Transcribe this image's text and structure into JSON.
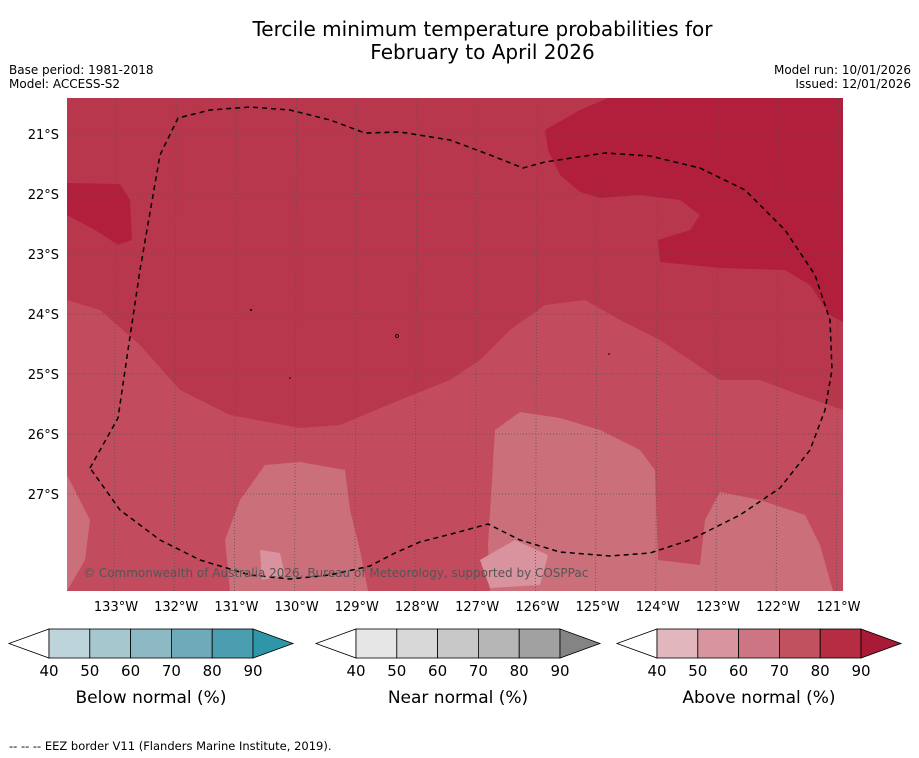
{
  "title_line1": "Tercile minimum temperature probabilities for",
  "title_line2": "February to April 2026",
  "base_period": "Base period: 1981-2018",
  "model": "Model: ACCESS-S2",
  "model_run": "Model run: 10/01/2026",
  "issued": "Issued: 12/01/2026",
  "copyright": "© Commonwealth of Australia 2026, Bureau of Meteorology, supported by COSPPac",
  "footer": "--  --  -- EEZ border V11 (Flanders Marine Institute, 2019).",
  "lat_labels": [
    "21°S",
    "22°S",
    "23°S",
    "24°S",
    "25°S",
    "26°S",
    "27°S"
  ],
  "lon_labels": [
    "133°W",
    "132°W",
    "131°W",
    "130°W",
    "129°W",
    "128°W",
    "127°W",
    "126°W",
    "125°W",
    "124°W",
    "123°W",
    "122°W",
    "121°W"
  ],
  "colorbars": [
    {
      "label": "Below normal (%)",
      "ticks": [
        "40",
        "50",
        "60",
        "70",
        "80",
        "90"
      ],
      "colors": [
        "#bdd4da",
        "#a7c7ce",
        "#8cb9c3",
        "#6eaab7",
        "#4a9eaf",
        "#2e96a9"
      ]
    },
    {
      "label": "Near normal (%)",
      "ticks": [
        "40",
        "50",
        "60",
        "70",
        "80",
        "90"
      ],
      "colors": [
        "#e6e6e6",
        "#d8d8d8",
        "#c8c8c8",
        "#b6b6b6",
        "#a1a1a1",
        "#848484"
      ]
    },
    {
      "label": "Above normal (%)",
      "ticks": [
        "40",
        "50",
        "60",
        "70",
        "80",
        "90"
      ],
      "colors": [
        "#e1b6bd",
        "#d8959f",
        "#cd7582",
        "#c2515f",
        "#b52c43",
        "#a81a36"
      ]
    }
  ],
  "map_colors": {
    "c70": "#cb6f7b",
    "c80": "#c34b5e",
    "c90": "#b9374c",
    "c95": "#b11f3c",
    "c60": "#d9939e"
  }
}
